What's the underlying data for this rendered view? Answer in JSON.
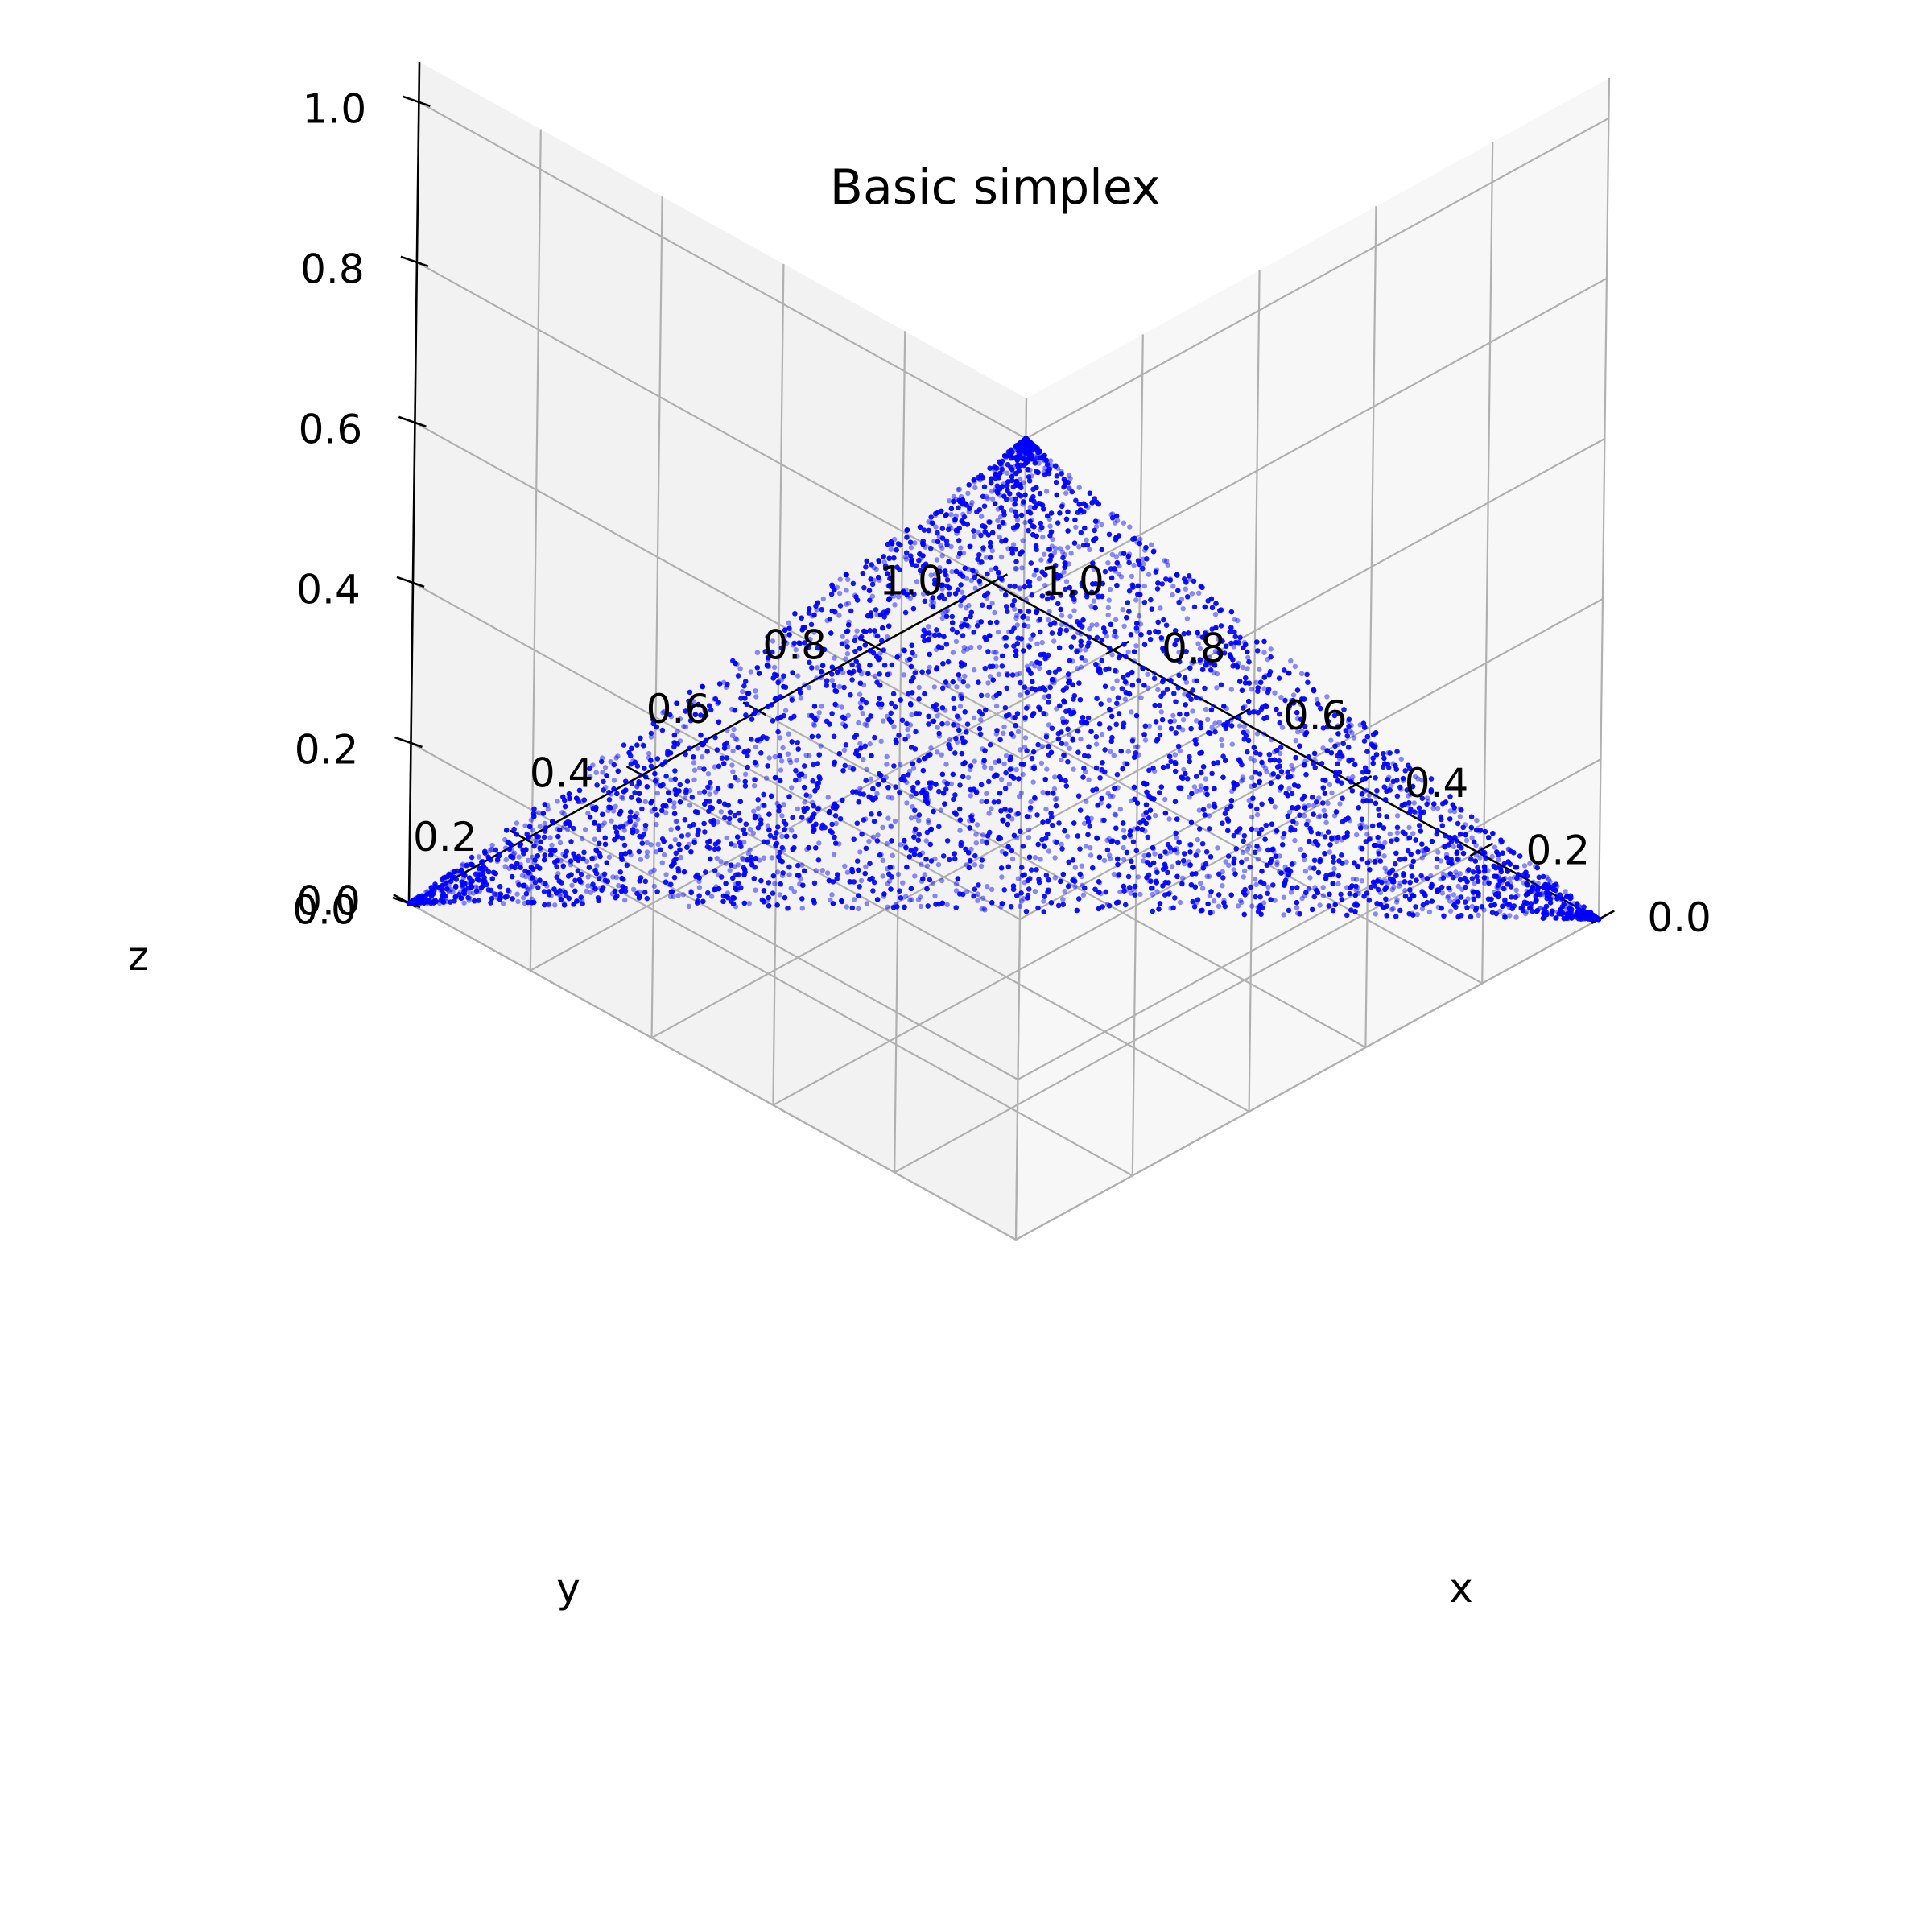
{
  "chart_data": {
    "type": "scatter",
    "projection": "3d",
    "title": "Basic simplex",
    "xlabel": "x",
    "ylabel": "y",
    "zlabel": "z",
    "xlim": [
      0.0,
      1.0
    ],
    "ylim": [
      0.0,
      1.0
    ],
    "zlim": [
      0.0,
      1.05
    ],
    "x_ticks": [
      "0.0",
      "0.2",
      "0.4",
      "0.6",
      "0.8",
      "1.0"
    ],
    "y_ticks": [
      "0.0",
      "0.2",
      "0.4",
      "0.6",
      "0.8",
      "1.0"
    ],
    "z_ticks": [
      "0.0",
      "0.2",
      "0.4",
      "0.6",
      "0.8",
      "1.0"
    ],
    "grid": true,
    "point_color": "#0000ff",
    "point_alpha": 0.45,
    "constraint": "x + y + z = 1, x, y, z >= 0",
    "vertices": [
      {
        "x": 1.0,
        "y": 0.0,
        "z": 0.0
      },
      {
        "x": 0.0,
        "y": 1.0,
        "z": 0.0
      },
      {
        "x": 0.0,
        "y": 0.0,
        "z": 1.0
      }
    ],
    "n_points": 16000,
    "distribution": "denser near the vertices"
  }
}
